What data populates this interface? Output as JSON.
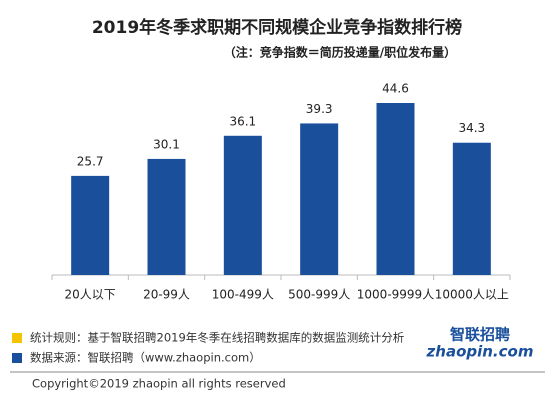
{
  "chart_data": {
    "type": "bar",
    "title": "2019年冬季求职期不同规模企业竞争指数排行榜",
    "subtitle": "（注：竞争指数＝简历投递量/职位发布量）",
    "categories": [
      "20人以下",
      "20-99人",
      "100-499人",
      "500-999人",
      "1000-9999人",
      "10000人以上"
    ],
    "values": [
      25.7,
      30.1,
      36.1,
      39.3,
      44.6,
      34.3
    ],
    "color": "#1a4f9c"
  },
  "notes": [
    {
      "text": "统计规则：基于智联招聘2019年冬季在线招聘数据库的数据监测统计分析",
      "color": "#f5c400"
    },
    {
      "text": "数据来源：智联招聘（www.zhaopin.com）",
      "color": "#1a4f9c"
    }
  ],
  "copyright": "Copyright©2019 zhaopin all rights reserved",
  "logo": {
    "name": "智联招聘",
    "domain": "zhaopin.com"
  }
}
